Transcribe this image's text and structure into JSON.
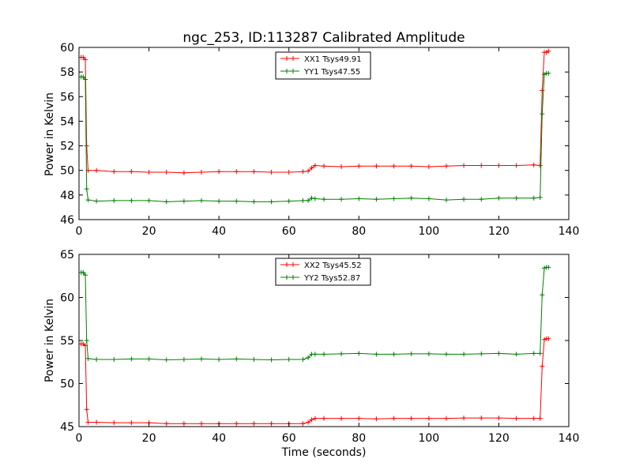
{
  "chart_data": [
    {
      "type": "line",
      "title": "ngc_253, ID:113287 Calibrated Amplitude",
      "xlabel": "",
      "ylabel": "Power in Kelvin",
      "xlim": [
        0,
        140
      ],
      "ylim": [
        46,
        60
      ],
      "x_ticks": [
        "0",
        "20",
        "40",
        "60",
        "80",
        "100",
        "120",
        "140"
      ],
      "y_ticks": [
        "46",
        "48",
        "50",
        "52",
        "54",
        "56",
        "58",
        "60"
      ],
      "grid": false,
      "legend_position": "top-center",
      "marker": "plus",
      "series": [
        {
          "name": "XX1 Tsys49.91",
          "color": "#ff0000",
          "x": [
            0.6,
            1.2,
            1.8,
            2.2,
            2.6,
            5,
            10,
            15,
            20,
            25,
            30,
            35,
            40,
            45,
            50,
            55,
            60,
            64,
            65.5,
            66.5,
            67.5,
            70,
            75,
            80,
            85,
            90,
            95,
            100,
            105,
            110,
            115,
            120,
            125,
            130,
            131.8,
            132.4,
            133,
            133.6,
            134.2
          ],
          "y": [
            59.2,
            59.2,
            59.0,
            52.0,
            50.0,
            50.0,
            49.9,
            49.9,
            49.85,
            49.85,
            49.8,
            49.85,
            49.9,
            49.9,
            49.9,
            49.85,
            49.85,
            49.9,
            49.95,
            50.2,
            50.4,
            50.35,
            50.3,
            50.35,
            50.35,
            50.35,
            50.35,
            50.3,
            50.35,
            50.4,
            50.4,
            50.4,
            50.4,
            50.45,
            50.4,
            56.5,
            59.6,
            59.6,
            59.7
          ]
        },
        {
          "name": "YY1 Tsys47.55",
          "color": "#008000",
          "x": [
            0.6,
            1.2,
            1.8,
            2.2,
            2.6,
            5,
            10,
            15,
            20,
            25,
            30,
            35,
            40,
            45,
            50,
            55,
            60,
            64,
            65.5,
            66.5,
            67.5,
            70,
            75,
            80,
            85,
            90,
            95,
            100,
            105,
            110,
            115,
            120,
            125,
            130,
            131.8,
            132.4,
            133,
            133.6,
            134.2
          ],
          "y": [
            57.6,
            57.6,
            57.4,
            48.5,
            47.6,
            47.5,
            47.55,
            47.55,
            47.55,
            47.45,
            47.5,
            47.55,
            47.5,
            47.5,
            47.45,
            47.45,
            47.5,
            47.55,
            47.55,
            47.75,
            47.7,
            47.65,
            47.65,
            47.7,
            47.65,
            47.7,
            47.75,
            47.7,
            47.6,
            47.65,
            47.65,
            47.75,
            47.75,
            47.75,
            47.8,
            54.6,
            57.8,
            57.9,
            57.9
          ]
        }
      ]
    },
    {
      "type": "line",
      "title": "",
      "xlabel": "Time (seconds)",
      "ylabel": "Power in Kelvin",
      "xlim": [
        0,
        140
      ],
      "ylim": [
        45,
        65
      ],
      "x_ticks": [
        "0",
        "20",
        "40",
        "60",
        "80",
        "100",
        "120",
        "140"
      ],
      "y_ticks": [
        "45",
        "50",
        "55",
        "60",
        "65"
      ],
      "grid": false,
      "legend_position": "top-center",
      "marker": "plus",
      "series": [
        {
          "name": "XX2 Tsys45.52",
          "color": "#ff0000",
          "x": [
            0.6,
            1.2,
            1.8,
            2.2,
            2.6,
            5,
            10,
            15,
            20,
            25,
            30,
            35,
            40,
            45,
            50,
            55,
            60,
            64,
            65.5,
            66.5,
            67.5,
            70,
            75,
            80,
            85,
            90,
            95,
            100,
            105,
            110,
            115,
            120,
            125,
            130,
            131.8,
            132.4,
            133,
            133.6,
            134.2
          ],
          "y": [
            54.6,
            54.6,
            54.4,
            47.0,
            45.5,
            45.5,
            45.45,
            45.45,
            45.45,
            45.35,
            45.35,
            45.35,
            45.35,
            45.35,
            45.35,
            45.35,
            45.35,
            45.35,
            45.5,
            45.8,
            45.95,
            45.95,
            45.95,
            45.95,
            45.9,
            45.95,
            45.95,
            45.95,
            45.95,
            46.0,
            46.0,
            46.0,
            45.95,
            45.95,
            45.95,
            52.0,
            55.1,
            55.2,
            55.2
          ]
        },
        {
          "name": "YY2 Tsys52.87",
          "color": "#008000",
          "x": [
            0.6,
            1.2,
            1.8,
            2.2,
            2.6,
            5,
            10,
            15,
            20,
            25,
            30,
            35,
            40,
            45,
            50,
            55,
            60,
            64,
            65.5,
            66.5,
            67.5,
            70,
            75,
            80,
            85,
            90,
            95,
            100,
            105,
            110,
            115,
            120,
            125,
            130,
            131.8,
            132.4,
            133,
            133.6,
            134.2
          ],
          "y": [
            62.9,
            62.9,
            62.6,
            55.0,
            52.9,
            52.8,
            52.8,
            52.85,
            52.85,
            52.75,
            52.8,
            52.85,
            52.8,
            52.85,
            52.8,
            52.75,
            52.8,
            52.8,
            53.0,
            53.4,
            53.4,
            53.4,
            53.45,
            53.5,
            53.4,
            53.4,
            53.45,
            53.45,
            53.4,
            53.4,
            53.45,
            53.5,
            53.4,
            53.5,
            53.5,
            60.3,
            63.4,
            63.5,
            63.5
          ]
        }
      ]
    }
  ]
}
